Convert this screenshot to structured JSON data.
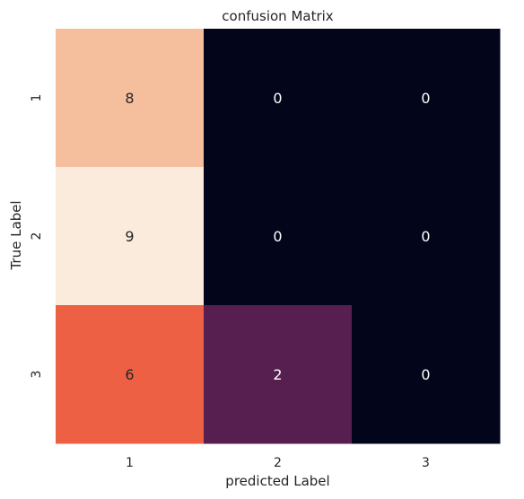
{
  "chart_data": {
    "type": "heatmap",
    "title": "confusion Matrix",
    "xlabel": "predicted Label",
    "ylabel": "True Label",
    "x_categories": [
      "1",
      "2",
      "3"
    ],
    "y_categories": [
      "1",
      "2",
      "3"
    ],
    "values": [
      [
        8,
        0,
        0
      ],
      [
        9,
        0,
        0
      ],
      [
        6,
        2,
        0
      ]
    ],
    "colormap": "rocket",
    "colorbar": false,
    "grid": false,
    "cell_colors": {
      "9": "#faebdd",
      "8": "#f5bf9e",
      "6": "#ee6044",
      "2": "#561f4f",
      "0": "#03051a"
    }
  }
}
